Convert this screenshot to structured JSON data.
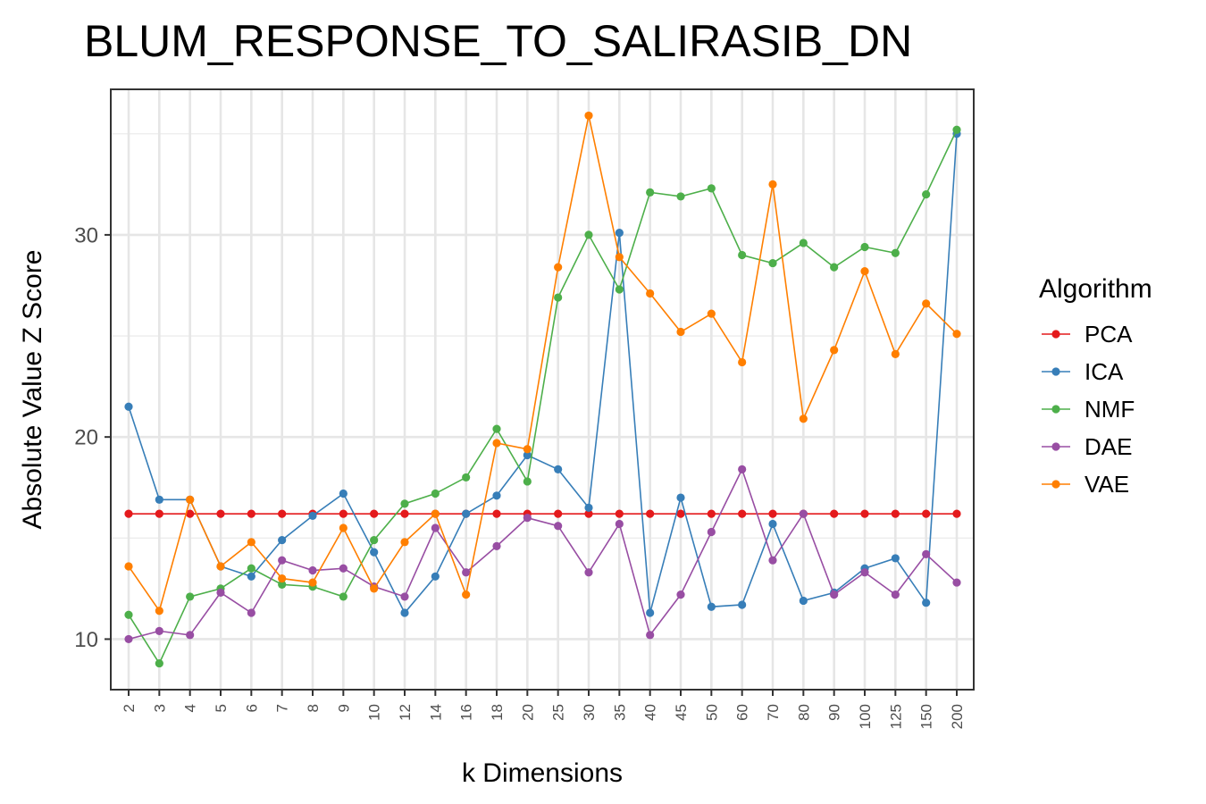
{
  "chart_data": {
    "type": "line",
    "title": "BLUM_RESPONSE_TO_SALIRASIB_DN",
    "xlabel": "k Dimensions",
    "ylabel": "Absolute Value Z Score",
    "categories": [
      "2",
      "3",
      "4",
      "5",
      "6",
      "7",
      "8",
      "9",
      "10",
      "12",
      "14",
      "16",
      "18",
      "20",
      "25",
      "30",
      "35",
      "40",
      "45",
      "50",
      "60",
      "70",
      "80",
      "90",
      "100",
      "125",
      "150",
      "200"
    ],
    "yticks": [
      10,
      20,
      30
    ],
    "ylim": [
      7.5,
      37.2
    ],
    "grid": true,
    "legend": {
      "title": "Algorithm",
      "position": "right"
    },
    "series": [
      {
        "name": "PCA",
        "color": "#e41a1c",
        "values": [
          16.2,
          16.2,
          16.2,
          16.2,
          16.2,
          16.2,
          16.2,
          16.2,
          16.2,
          16.2,
          16.2,
          16.2,
          16.2,
          16.2,
          16.2,
          16.2,
          16.2,
          16.2,
          16.2,
          16.2,
          16.2,
          16.2,
          16.2,
          16.2,
          16.2,
          16.2,
          16.2,
          16.2
        ]
      },
      {
        "name": "ICA",
        "color": "#377eb8",
        "values": [
          21.5,
          16.9,
          16.9,
          13.6,
          13.1,
          14.9,
          16.1,
          17.2,
          14.3,
          11.3,
          13.1,
          16.2,
          17.1,
          19.1,
          18.4,
          16.5,
          30.1,
          11.3,
          17.0,
          11.6,
          11.7,
          15.7,
          11.9,
          12.3,
          13.5,
          14.0,
          11.8,
          35.0
        ]
      },
      {
        "name": "NMF",
        "color": "#4daf4a",
        "values": [
          11.2,
          8.8,
          12.1,
          12.5,
          13.5,
          12.7,
          12.6,
          12.1,
          14.9,
          16.7,
          17.2,
          18.0,
          20.4,
          17.8,
          26.9,
          30.0,
          27.3,
          32.1,
          31.9,
          32.3,
          29.0,
          28.6,
          29.6,
          28.4,
          29.4,
          29.1,
          32.0,
          35.2
        ]
      },
      {
        "name": "DAE",
        "color": "#984ea3",
        "values": [
          10.0,
          10.4,
          10.2,
          12.3,
          11.3,
          13.9,
          13.4,
          13.5,
          12.6,
          12.1,
          15.5,
          13.3,
          14.6,
          16.0,
          15.6,
          13.3,
          15.7,
          10.2,
          12.2,
          15.3,
          18.4,
          13.9,
          16.2,
          12.2,
          13.3,
          12.2,
          14.2,
          12.8
        ]
      },
      {
        "name": "VAE",
        "color": "#ff7f00",
        "values": [
          13.6,
          11.4,
          16.9,
          13.6,
          14.8,
          13.0,
          12.8,
          15.5,
          12.5,
          14.8,
          16.2,
          12.2,
          19.7,
          19.4,
          28.4,
          35.9,
          28.9,
          27.1,
          25.2,
          26.1,
          23.7,
          32.5,
          20.9,
          24.3,
          28.2,
          24.1,
          26.6,
          25.1
        ]
      }
    ]
  }
}
